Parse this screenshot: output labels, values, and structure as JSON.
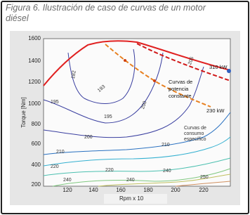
{
  "caption": "Figura 6. Ilustración de caso de curvas de un motor diésel",
  "figure": {
    "y_label": "Torque [Nm]",
    "x_label": "Rpm x 10",
    "y_ticks": [
      "1600",
      "1400",
      "1200",
      "1000",
      "800",
      "600",
      "400",
      "200"
    ],
    "x_ticks": [
      "120",
      "140",
      "160",
      "180",
      "200",
      "220"
    ],
    "contour_labels": [
      "182",
      "193",
      "195",
      "195",
      "200",
      "200",
      "205",
      "210",
      "210",
      "220",
      "220",
      "240",
      "240",
      "240",
      "250"
    ],
    "annotations": {
      "power_high": "310 kW",
      "power_low": "230 kW",
      "power_curves": [
        "Curvas de",
        "potencia",
        "constante"
      ],
      "consumption_curves": [
        "Curvas de",
        "consumo",
        "específico"
      ]
    }
  }
}
